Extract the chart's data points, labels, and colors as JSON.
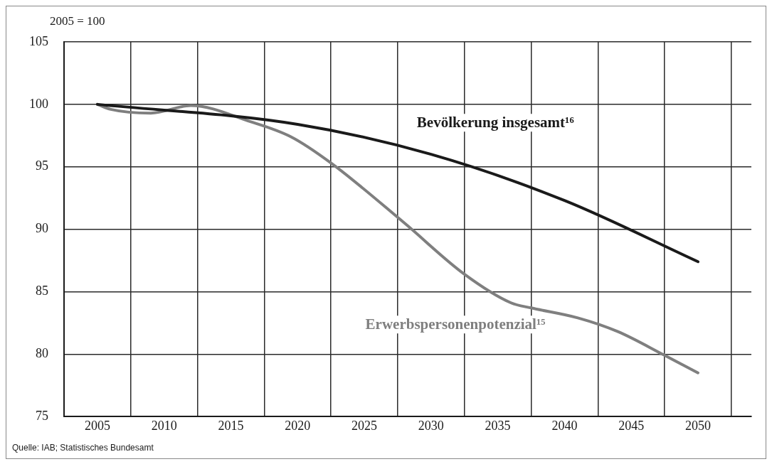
{
  "chart_data": {
    "type": "line",
    "ylabel": "2005 = 100",
    "xlim": [
      2002.5,
      2054
    ],
    "xticks": [
      {
        "value": 2002.5,
        "label": null
      },
      2005,
      {
        "value": 2007.5,
        "label": null
      },
      2010,
      {
        "value": 2012.5,
        "label": null
      },
      2015,
      {
        "value": 2017.5,
        "label": null
      },
      2020,
      {
        "value": 2022.5,
        "label": null
      },
      2025,
      {
        "value": 2027.5,
        "label": null
      },
      2030,
      {
        "value": 2032.5,
        "label": null
      },
      2035,
      {
        "value": 2037.5,
        "label": null
      },
      2040,
      {
        "value": 2042.5,
        "label": null
      },
      2045,
      {
        "value": 2047.5,
        "label": null
      },
      2050,
      {
        "value": 2052.5,
        "label": null
      }
    ],
    "ylim": [
      75,
      105
    ],
    "yticks": [
      75,
      80,
      85,
      90,
      95,
      100,
      105
    ],
    "grid": true,
    "legend": false,
    "marker": "none",
    "line_style": "solid",
    "series": [
      {
        "name": "Bevölkerung insgesamt¹⁶",
        "color": "#1a1a1a",
        "x": [
          2005,
          2020,
          2030,
          2040,
          2050
        ],
        "values": [
          100,
          98.4,
          96.0,
          92.3,
          87.4
        ]
      },
      {
        "name": "Erwerbspersonenpotenzial¹⁵",
        "color": "#7f7f7f",
        "x": [
          2005,
          2006,
          2009,
          2012,
          2016.5,
          2019.5,
          2022.5,
          2028,
          2032.5,
          2036,
          2037.5,
          2041,
          2044,
          2047.5,
          2050
        ],
        "values": [
          100,
          99.6,
          99.3,
          99.9,
          98.6,
          97.4,
          95.3,
          90.5,
          86.4,
          84.1,
          83.7,
          82.9,
          81.8,
          79.9,
          78.5
        ]
      }
    ],
    "annotations": [
      "Quelle: IAB; Statistisches Bundesamt"
    ]
  }
}
